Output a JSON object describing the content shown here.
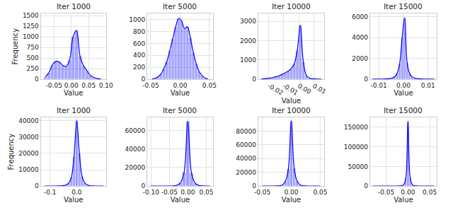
{
  "chart_data": [
    {
      "type": "histogram",
      "title": "Iter 1000",
      "xlabel": "Value",
      "ylabel": "Frequency",
      "color": "#0000ff",
      "grid": true,
      "bins": [
        -0.08,
        -0.07,
        -0.06,
        -0.05,
        -0.04,
        -0.03,
        -0.02,
        -0.01,
        0.0,
        0.01,
        0.02,
        0.03,
        0.04,
        0.05,
        0.06,
        0.07,
        0.08,
        0.09
      ],
      "counts": [
        50,
        150,
        330,
        420,
        410,
        330,
        300,
        450,
        1000,
        1150,
        550,
        320,
        200,
        90,
        40,
        15,
        5
      ],
      "xlim": [
        -0.088,
        0.1
      ],
      "xticks": [
        {
          "value": -0.05,
          "label": "-0.05"
        },
        {
          "value": 0,
          "label": "0.00"
        },
        {
          "value": 0.05,
          "label": "0.05"
        },
        {
          "value": 0.1,
          "label": "0.10"
        }
      ],
      "ylim": [
        0,
        1550
      ],
      "yticks": [
        0,
        250,
        500,
        750,
        1000,
        1250,
        1500
      ]
    },
    {
      "type": "histogram",
      "title": "Iter 5000",
      "xlabel": "Value",
      "color": "#0000ff",
      "grid": true,
      "bins": [
        -0.05,
        -0.045,
        -0.04,
        -0.035,
        -0.03,
        -0.025,
        -0.02,
        -0.015,
        -0.01,
        -0.005,
        0.0,
        0.005,
        0.01,
        0.015,
        0.02,
        0.025,
        0.03,
        0.035,
        0.04,
        0.045,
        0.05
      ],
      "counts": [
        5,
        15,
        40,
        90,
        180,
        300,
        480,
        680,
        880,
        1020,
        980,
        850,
        880,
        700,
        450,
        260,
        130,
        60,
        20,
        5
      ],
      "xlim": [
        -0.056,
        0.056
      ],
      "xticks": [
        {
          "value": -0.05,
          "label": "-0.05"
        },
        {
          "value": 0,
          "label": "0.00"
        },
        {
          "value": 0.05,
          "label": "0.05"
        }
      ],
      "ylim": [
        0,
        1100
      ],
      "yticks": [
        0,
        200,
        400,
        600,
        800,
        1000
      ]
    },
    {
      "type": "histogram",
      "title": "Iter 10000",
      "xlabel": "Value",
      "color": "#0000ff",
      "grid": true,
      "bins": [
        -0.026,
        -0.024,
        -0.022,
        -0.02,
        -0.018,
        -0.016,
        -0.014,
        -0.012,
        -0.01,
        -0.008,
        -0.006,
        -0.004,
        -0.002,
        0.0,
        0.002,
        0.004,
        0.006,
        0.008,
        0.01,
        0.012,
        0.014,
        0.016
      ],
      "counts": [
        10,
        20,
        40,
        60,
        90,
        130,
        180,
        250,
        330,
        420,
        550,
        800,
        1500,
        2800,
        900,
        200,
        60,
        20,
        10,
        5,
        3
      ],
      "xlim": [
        -0.027,
        0.017
      ],
      "xticks": [
        {
          "value": -0.02,
          "label": "-0.02"
        },
        {
          "value": -0.01,
          "label": "-0.01"
        },
        {
          "value": 0,
          "label": "0.00"
        },
        {
          "value": 0.01,
          "label": "0.01"
        }
      ],
      "ylim": [
        0,
        3400
      ],
      "yticks": [
        0,
        1000,
        2000,
        3000
      ]
    },
    {
      "type": "histogram",
      "title": "Iter 15000",
      "xlabel": "Value",
      "color": "#0000ff",
      "grid": true,
      "bins": [
        -0.013,
        -0.012,
        -0.011,
        -0.01,
        -0.009,
        -0.008,
        -0.007,
        -0.006,
        -0.005,
        -0.004,
        -0.003,
        -0.002,
        -0.001,
        0.0,
        0.001,
        0.002,
        0.003,
        0.004,
        0.005,
        0.006,
        0.007,
        0.008,
        0.009,
        0.01,
        0.011,
        0.012,
        0.013
      ],
      "counts": [
        2,
        3,
        5,
        8,
        12,
        20,
        35,
        60,
        110,
        250,
        600,
        1500,
        4000,
        5900,
        1600,
        550,
        230,
        100,
        50,
        30,
        18,
        10,
        6,
        4,
        3,
        2
      ],
      "xlim": [
        -0.0135,
        0.0135
      ],
      "xticks": [
        {
          "value": -0.01,
          "label": "-0.01"
        },
        {
          "value": 0,
          "label": "0.00"
        },
        {
          "value": 0.01,
          "label": "0.01"
        }
      ],
      "ylim": [
        0,
        6300
      ],
      "yticks": [
        0,
        2000,
        4000,
        6000
      ]
    },
    {
      "type": "histogram",
      "title": "Iter 1000",
      "xlabel": "Value",
      "ylabel": "Frequency",
      "color": "#0000ff",
      "grid": true,
      "bins": [
        -0.125,
        -0.115,
        -0.105,
        -0.095,
        -0.085,
        -0.075,
        -0.065,
        -0.055,
        -0.045,
        -0.035,
        -0.025,
        -0.015,
        -0.005,
        0.005,
        0.015,
        0.025,
        0.035,
        0.045,
        0.055,
        0.065,
        0.075,
        0.085,
        0.095,
        0.105
      ],
      "counts": [
        3,
        5,
        10,
        20,
        40,
        80,
        150,
        300,
        700,
        1800,
        5500,
        18000,
        40000,
        20000,
        6000,
        2000,
        700,
        250,
        100,
        40,
        15,
        8,
        4
      ],
      "xlim": [
        -0.135,
        0.11
      ],
      "xticks": [
        {
          "value": -0.1,
          "label": "-0.1"
        },
        {
          "value": 0,
          "label": "0.0"
        }
      ],
      "ylim": [
        0,
        42000
      ],
      "yticks": [
        0,
        10000,
        20000,
        30000,
        40000
      ]
    },
    {
      "type": "histogram",
      "title": "Iter 5000",
      "xlabel": "Value",
      "color": "#0000ff",
      "grid": true,
      "bins": [
        -0.105,
        -0.095,
        -0.085,
        -0.075,
        -0.065,
        -0.055,
        -0.045,
        -0.035,
        -0.025,
        -0.015,
        -0.005,
        0.005,
        0.015,
        0.025,
        0.035,
        0.045,
        0.055,
        0.065
      ],
      "counts": [
        2,
        5,
        10,
        20,
        40,
        100,
        300,
        900,
        3500,
        15000,
        70000,
        14000,
        3000,
        700,
        150,
        30,
        5
      ],
      "xlim": [
        -0.11,
        0.068
      ],
      "xticks": [
        {
          "value": -0.1,
          "label": "-0.10"
        },
        {
          "value": -0.05,
          "label": "-0.05"
        },
        {
          "value": 0,
          "label": "0.00"
        },
        {
          "value": 0.05,
          "label": "0.05"
        }
      ],
      "ylim": [
        0,
        74000
      ],
      "yticks": [
        0,
        20000,
        40000,
        60000
      ]
    },
    {
      "type": "histogram",
      "title": "Iter 10000",
      "xlabel": "Value",
      "color": "#0000ff",
      "grid": true,
      "bins": [
        -0.0525,
        -0.0475,
        -0.0425,
        -0.0375,
        -0.0325,
        -0.0275,
        -0.0225,
        -0.0175,
        -0.0125,
        -0.0075,
        -0.0025,
        0.0025,
        0.0075,
        0.0125,
        0.0175,
        0.0225,
        0.0275,
        0.0325,
        0.0375,
        0.0425,
        0.0475,
        0.0525
      ],
      "counts": [
        2,
        5,
        10,
        30,
        80,
        200,
        600,
        2000,
        7000,
        25000,
        95000,
        26000,
        7000,
        2000,
        600,
        200,
        80,
        30,
        10,
        5,
        2
      ],
      "xlim": [
        -0.057,
        0.057
      ],
      "xticks": [
        {
          "value": -0.05,
          "label": "-0.05"
        },
        {
          "value": 0,
          "label": "0.00"
        },
        {
          "value": 0.05,
          "label": "0.05"
        }
      ],
      "ylim": [
        0,
        100000
      ],
      "yticks": [
        0,
        20000,
        40000,
        60000,
        80000
      ]
    },
    {
      "type": "histogram",
      "title": "Iter 15000",
      "xlabel": "Value",
      "color": "#0000ff",
      "grid": true,
      "bins": [
        -0.0825,
        -0.0775,
        -0.0725,
        -0.0675,
        -0.0625,
        -0.0575,
        -0.0525,
        -0.0475,
        -0.0425,
        -0.0375,
        -0.0325,
        -0.0275,
        -0.0225,
        -0.0175,
        -0.0125,
        -0.0075,
        -0.0025,
        0.0025,
        0.0075,
        0.0125,
        0.0175,
        0.0225,
        0.0275,
        0.0325,
        0.0375,
        0.0425,
        0.0475,
        0.0525,
        0.0575,
        0.0625
      ],
      "counts": [
        1,
        1,
        2,
        2,
        3,
        5,
        8,
        12,
        20,
        35,
        60,
        120,
        300,
        900,
        3500,
        20000,
        165000,
        22000,
        3500,
        900,
        300,
        100,
        40,
        15,
        8,
        4,
        2,
        1,
        1
      ],
      "xlim": [
        -0.087,
        0.066
      ],
      "xticks": [
        {
          "value": -0.05,
          "label": "-0.05"
        },
        {
          "value": 0,
          "label": "0.00"
        },
        {
          "value": 0.05,
          "label": "0.05"
        }
      ],
      "ylim": [
        0,
        175000
      ],
      "yticks": [
        0,
        50000,
        100000,
        150000
      ]
    }
  ]
}
